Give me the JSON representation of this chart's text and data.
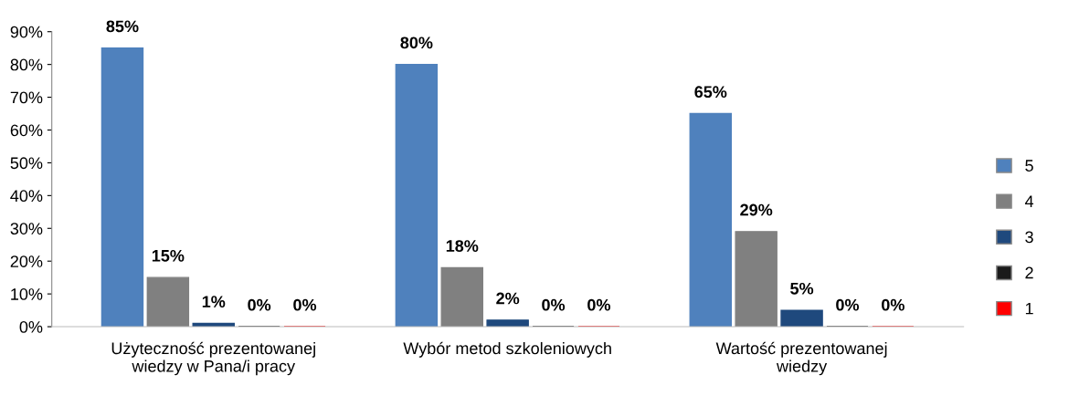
{
  "chart_data": {
    "type": "bar",
    "categories": [
      "Użyteczność prezentowanej\nwiedzy w Pana/i pracy",
      "Wybór metod szkoleniowych",
      "Wartość prezentowanej\nwiedzy"
    ],
    "series": [
      {
        "name": "5",
        "color": "#4f81bd",
        "values": [
          85,
          80,
          65
        ],
        "value_labels": [
          "85%",
          "80%",
          "65%"
        ]
      },
      {
        "name": "4",
        "color": "#808080",
        "values": [
          15,
          18,
          29
        ],
        "value_labels": [
          "15%",
          "18%",
          "29%"
        ]
      },
      {
        "name": "3",
        "color": "#1f497d",
        "values": [
          1,
          2,
          5
        ],
        "value_labels": [
          "1%",
          "2%",
          "5%"
        ]
      },
      {
        "name": "2",
        "color": "#1a1a1a",
        "values": [
          0,
          0,
          0
        ],
        "value_labels": [
          "0%",
          "0%",
          "0%"
        ]
      },
      {
        "name": "1",
        "color": "#ff0000",
        "values": [
          0,
          0,
          0
        ],
        "value_labels": [
          "0%",
          "0%",
          "0%"
        ]
      }
    ],
    "ylim": [
      0,
      90
    ],
    "yticks": [
      {
        "value": 0,
        "label": "0%"
      },
      {
        "value": 10,
        "label": "10%"
      },
      {
        "value": 20,
        "label": "20%"
      },
      {
        "value": 30,
        "label": "30%"
      },
      {
        "value": 40,
        "label": "40%"
      },
      {
        "value": 50,
        "label": "50%"
      },
      {
        "value": 60,
        "label": "60%"
      },
      {
        "value": 70,
        "label": "70%"
      },
      {
        "value": 80,
        "label": "80%"
      },
      {
        "value": 90,
        "label": "90%"
      }
    ],
    "grid": false,
    "legend": "right"
  }
}
